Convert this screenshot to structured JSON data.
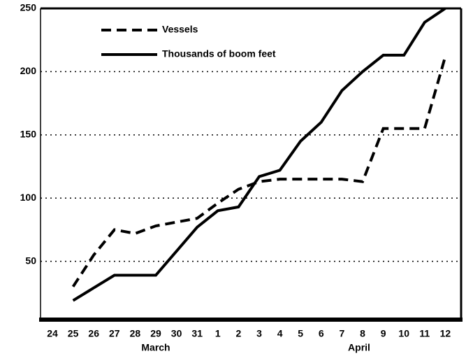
{
  "chart_data": {
    "type": "line",
    "categories": [
      "24",
      "25",
      "26",
      "27",
      "28",
      "29",
      "30",
      "31",
      "1",
      "2",
      "3",
      "4",
      "5",
      "6",
      "7",
      "8",
      "9",
      "10",
      "11",
      "12"
    ],
    "series": [
      {
        "name": "Vessels",
        "color": "#000000",
        "dash": true,
        "values": [
          null,
          30,
          55,
          75,
          72,
          78,
          81,
          84,
          96,
          107,
          113,
          115,
          115,
          115,
          115,
          113,
          155,
          155,
          155,
          212
        ]
      },
      {
        "name": "Thousands of boom feet",
        "color": "#000000",
        "dash": false,
        "values": [
          null,
          19,
          29,
          39,
          39,
          39,
          58,
          77,
          90,
          93,
          117,
          122,
          145,
          160,
          185,
          200,
          213,
          213,
          239,
          250
        ]
      }
    ],
    "month_labels": [
      "March",
      "April"
    ],
    "ylim": [
      5,
      250
    ],
    "yticks": [
      50,
      100,
      150,
      200,
      250
    ],
    "grid": true
  }
}
